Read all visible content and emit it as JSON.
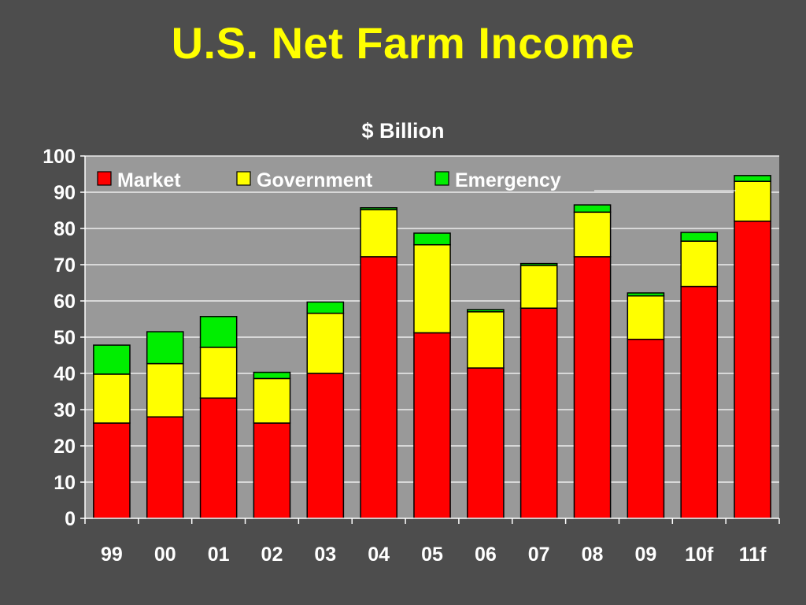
{
  "slide": {
    "title": "U.S. Net Farm Income"
  },
  "chart_data": {
    "type": "bar",
    "stacked": true,
    "title": "$ Billion",
    "categories": [
      "99",
      "00",
      "01",
      "02",
      "03",
      "04",
      "05",
      "06",
      "07",
      "08",
      "09",
      "10f",
      "11f"
    ],
    "series": [
      {
        "name": "Market",
        "color": "#ff0000",
        "values": [
          26.3,
          28.0,
          33.2,
          26.3,
          40.0,
          72.2,
          51.2,
          41.5,
          58.0,
          72.2,
          49.4,
          64.0,
          82.0
        ]
      },
      {
        "name": "Government",
        "color": "#ffff00",
        "values": [
          13.5,
          14.7,
          14.0,
          12.3,
          16.6,
          13.0,
          24.3,
          15.5,
          11.8,
          12.3,
          12.0,
          12.5,
          11.0
        ]
      },
      {
        "name": "Emergency",
        "color": "#00ee00",
        "values": [
          8.0,
          8.8,
          8.5,
          1.7,
          3.1,
          0.5,
          3.2,
          0.6,
          0.5,
          2.0,
          0.8,
          2.4,
          1.6
        ]
      }
    ],
    "ylim": [
      0,
      100
    ],
    "yticks": [
      0,
      10,
      20,
      30,
      40,
      50,
      60,
      70,
      80,
      90,
      100
    ],
    "grid": true,
    "legend": "top",
    "plot_background": "#999999"
  }
}
